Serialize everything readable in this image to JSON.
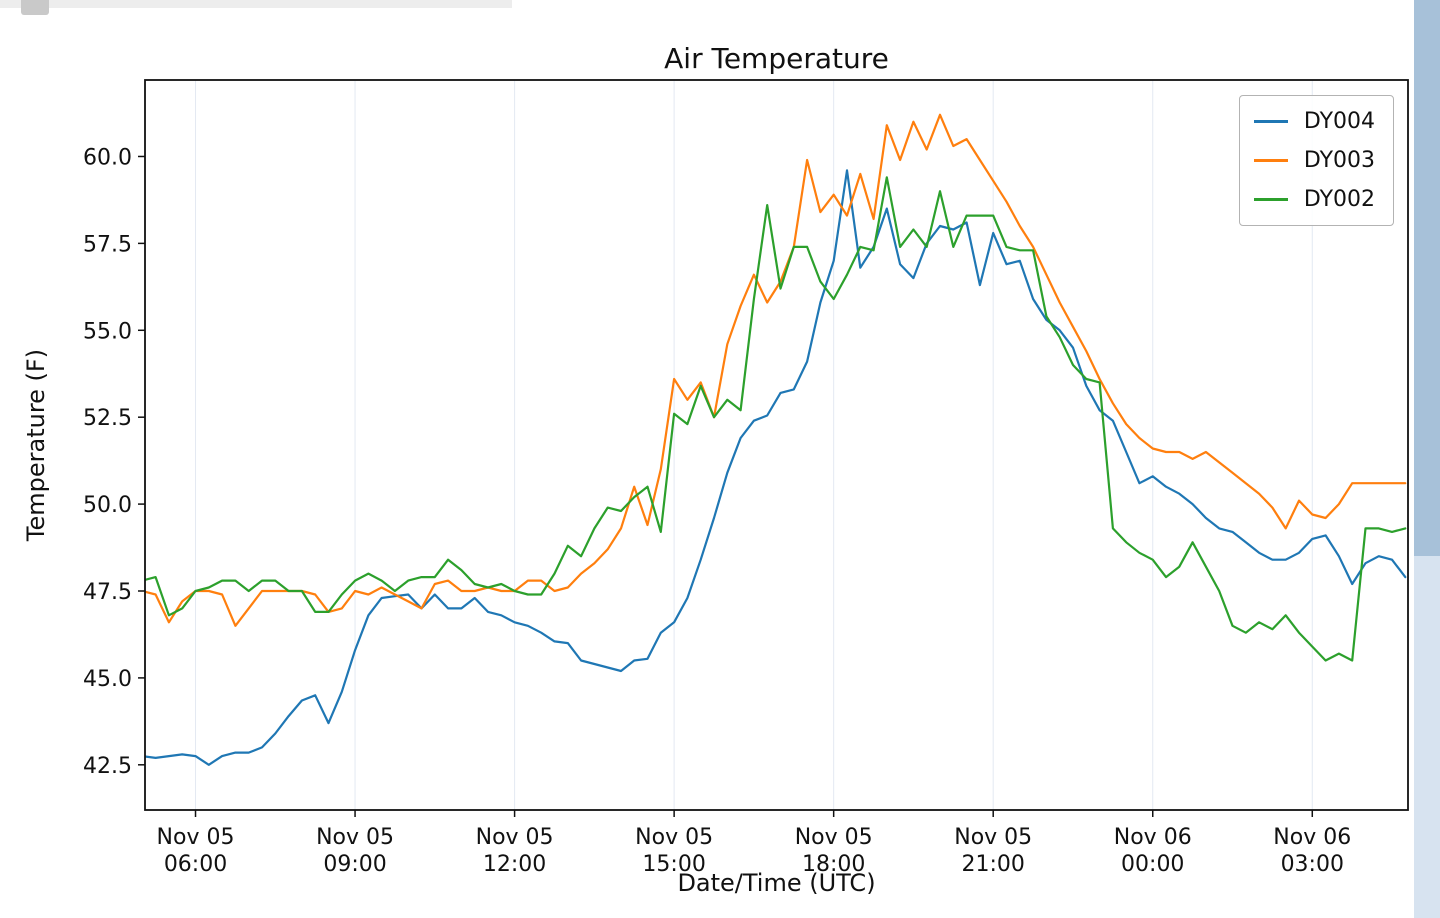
{
  "chart_data": {
    "type": "line",
    "title": "Air Temperature",
    "xlabel": "Date/Time (UTC)",
    "ylabel": "Temperature (F)",
    "x_unit": "hours since Nov 05 00:00 UTC",
    "xlim": [
      5.05,
      28.8
    ],
    "ylim": [
      41.2,
      62.2
    ],
    "grid": {
      "vertical": true,
      "color": "#e3e9f2"
    },
    "legend_position": "upper right",
    "x_ticks": [
      {
        "pos": 6,
        "line1": "Nov 05",
        "line2": "06:00"
      },
      {
        "pos": 9,
        "line1": "Nov 05",
        "line2": "09:00"
      },
      {
        "pos": 12,
        "line1": "Nov 05",
        "line2": "12:00"
      },
      {
        "pos": 15,
        "line1": "Nov 05",
        "line2": "15:00"
      },
      {
        "pos": 18,
        "line1": "Nov 05",
        "line2": "18:00"
      },
      {
        "pos": 21,
        "line1": "Nov 05",
        "line2": "21:00"
      },
      {
        "pos": 24,
        "line1": "Nov 06",
        "line2": "00:00"
      },
      {
        "pos": 27,
        "line1": "Nov 06",
        "line2": "03:00"
      }
    ],
    "y_ticks": [
      {
        "pos": 42.5,
        "label": "42.5"
      },
      {
        "pos": 45.0,
        "label": "45.0"
      },
      {
        "pos": 47.5,
        "label": "47.5"
      },
      {
        "pos": 50.0,
        "label": "50.0"
      },
      {
        "pos": 52.5,
        "label": "52.5"
      },
      {
        "pos": 55.0,
        "label": "55.0"
      },
      {
        "pos": 57.5,
        "label": "57.5"
      },
      {
        "pos": 60.0,
        "label": "60.0"
      }
    ],
    "x": [
      5.0,
      5.25,
      5.5,
      5.75,
      6.0,
      6.25,
      6.5,
      6.75,
      7.0,
      7.25,
      7.5,
      7.75,
      8.0,
      8.25,
      8.5,
      8.75,
      9.0,
      9.25,
      9.5,
      9.75,
      10.0,
      10.25,
      10.5,
      10.75,
      11.0,
      11.25,
      11.5,
      11.75,
      12.0,
      12.25,
      12.5,
      12.75,
      13.0,
      13.25,
      13.5,
      13.75,
      14.0,
      14.25,
      14.5,
      14.75,
      15.0,
      15.25,
      15.5,
      15.75,
      16.0,
      16.25,
      16.5,
      16.75,
      17.0,
      17.25,
      17.5,
      17.75,
      18.0,
      18.25,
      18.5,
      18.75,
      19.0,
      19.25,
      19.5,
      19.75,
      20.0,
      20.25,
      20.5,
      20.75,
      21.0,
      21.25,
      21.5,
      21.75,
      22.0,
      22.25,
      22.5,
      22.75,
      23.0,
      23.25,
      23.5,
      23.75,
      24.0,
      24.25,
      24.5,
      24.75,
      25.0,
      25.25,
      25.5,
      25.75,
      26.0,
      26.25,
      26.5,
      26.75,
      27.0,
      27.25,
      27.5,
      27.75,
      28.0,
      28.25,
      28.5,
      28.75
    ],
    "series": [
      {
        "name": "DY004",
        "color": "#1f77b4",
        "values": [
          42.75,
          42.7,
          42.75,
          42.8,
          42.75,
          42.5,
          42.75,
          42.85,
          42.85,
          43.0,
          43.4,
          43.9,
          44.35,
          44.5,
          43.7,
          44.6,
          45.8,
          46.8,
          47.3,
          47.35,
          47.4,
          47.0,
          47.4,
          47.0,
          47.0,
          47.3,
          46.9,
          46.8,
          46.6,
          46.5,
          46.3,
          46.05,
          46.0,
          45.5,
          45.4,
          45.3,
          45.2,
          45.5,
          45.55,
          46.3,
          46.6,
          47.3,
          48.4,
          49.6,
          50.9,
          51.9,
          52.4,
          52.55,
          53.2,
          53.3,
          54.1,
          55.8,
          57.0,
          59.6,
          56.8,
          57.4,
          58.5,
          56.9,
          56.5,
          57.5,
          58.0,
          57.9,
          58.1,
          56.3,
          57.8,
          56.9,
          57.0,
          55.9,
          55.3,
          55.0,
          54.5,
          53.4,
          52.7,
          52.4,
          51.5,
          50.6,
          50.8,
          50.5,
          50.3,
          50.0,
          49.6,
          49.3,
          49.2,
          48.9,
          48.6,
          48.4,
          48.4,
          48.6,
          49.0,
          49.1,
          48.5,
          47.7,
          48.3,
          48.5,
          48.4,
          47.9
        ]
      },
      {
        "name": "DY003",
        "color": "#ff7f0e",
        "values": [
          47.5,
          47.4,
          46.6,
          47.2,
          47.5,
          47.5,
          47.4,
          46.5,
          47.0,
          47.5,
          47.5,
          47.5,
          47.5,
          47.4,
          46.9,
          47.0,
          47.5,
          47.4,
          47.6,
          47.4,
          47.2,
          47.0,
          47.7,
          47.8,
          47.5,
          47.5,
          47.6,
          47.5,
          47.5,
          47.8,
          47.8,
          47.5,
          47.6,
          48.0,
          48.3,
          48.7,
          49.3,
          50.5,
          49.4,
          51.0,
          53.6,
          53.0,
          53.5,
          52.5,
          54.6,
          55.7,
          56.6,
          55.8,
          56.4,
          57.4,
          59.9,
          58.4,
          58.9,
          58.3,
          59.5,
          58.2,
          60.9,
          59.9,
          61.0,
          60.2,
          61.2,
          60.3,
          60.5,
          59.9,
          59.3,
          58.7,
          58.0,
          57.4,
          56.6,
          55.8,
          55.1,
          54.4,
          53.6,
          52.9,
          52.3,
          51.9,
          51.6,
          51.5,
          51.5,
          51.3,
          51.5,
          51.2,
          50.9,
          50.6,
          50.3,
          49.9,
          49.3,
          50.1,
          49.7,
          49.6,
          50.0,
          50.6,
          50.6,
          50.6,
          50.6,
          50.6
        ]
      },
      {
        "name": "DY002",
        "color": "#2ca02c",
        "values": [
          47.8,
          47.9,
          46.8,
          47.0,
          47.5,
          47.6,
          47.8,
          47.8,
          47.5,
          47.8,
          47.8,
          47.5,
          47.5,
          46.9,
          46.9,
          47.4,
          47.8,
          48.0,
          47.8,
          47.5,
          47.8,
          47.9,
          47.9,
          48.4,
          48.1,
          47.7,
          47.6,
          47.7,
          47.5,
          47.4,
          47.4,
          48.0,
          48.8,
          48.5,
          49.3,
          49.9,
          49.8,
          50.2,
          50.5,
          49.2,
          52.6,
          52.3,
          53.4,
          52.5,
          53.0,
          52.7,
          55.9,
          58.6,
          56.2,
          57.4,
          57.4,
          56.4,
          55.9,
          56.6,
          57.4,
          57.3,
          59.4,
          57.4,
          57.9,
          57.4,
          59.0,
          57.4,
          58.3,
          58.3,
          58.3,
          57.4,
          57.3,
          57.3,
          55.4,
          54.8,
          54.0,
          53.6,
          53.5,
          49.3,
          48.9,
          48.6,
          48.4,
          47.9,
          48.2,
          48.9,
          48.2,
          47.5,
          46.5,
          46.3,
          46.6,
          46.4,
          46.8,
          46.3,
          45.9,
          45.5,
          45.7,
          45.5,
          49.3,
          49.3,
          49.2,
          49.3
        ]
      }
    ]
  }
}
